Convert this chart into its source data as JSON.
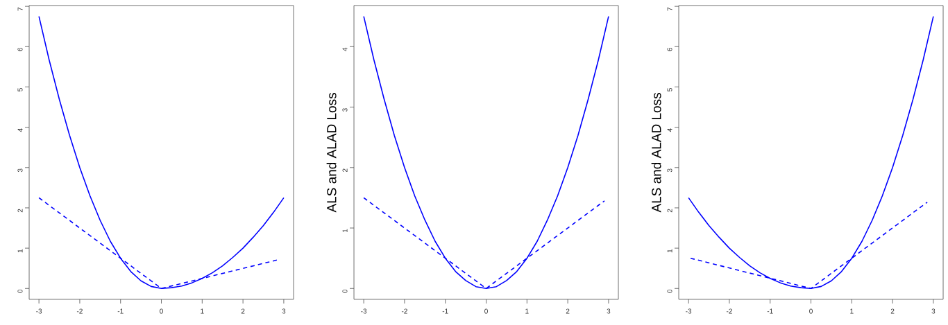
{
  "chart_data": [
    {
      "type": "line",
      "xlim": [
        -3.24,
        3.24
      ],
      "ylim": [
        -0.27,
        7.02
      ],
      "xticks": [
        -3,
        -2,
        -1,
        0,
        1,
        2,
        3
      ],
      "yticks": [
        0,
        1,
        2,
        3,
        4,
        5,
        6,
        7
      ],
      "series": [
        {
          "color": "#0000ff",
          "line_style": "solid",
          "x": [
            -3,
            -2.75,
            -2.5,
            -2.25,
            -2,
            -1.75,
            -1.5,
            -1.25,
            -1,
            -0.75,
            -0.5,
            -0.25,
            0,
            0.25,
            0.5,
            0.75,
            1,
            1.25,
            1.5,
            1.75,
            2,
            2.25,
            2.5,
            2.75,
            3
          ],
          "values": [
            6.75,
            5.67,
            4.69,
            3.8,
            3.0,
            2.3,
            1.69,
            1.17,
            0.75,
            0.42,
            0.19,
            0.05,
            0,
            0.02,
            0.06,
            0.14,
            0.25,
            0.39,
            0.56,
            0.77,
            1.0,
            1.27,
            1.56,
            1.89,
            2.25
          ]
        },
        {
          "color": "#0000ff",
          "line_style": "dashed",
          "x": [
            -3,
            0,
            2.85
          ],
          "values": [
            2.25,
            0,
            0.71
          ]
        }
      ]
    },
    {
      "type": "line",
      "xlim": [
        -3.24,
        3.24
      ],
      "ylim": [
        -0.18,
        4.68
      ],
      "xticks": [
        -3,
        -2,
        -1,
        0,
        1,
        2,
        3
      ],
      "yticks": [
        0,
        1,
        2,
        3,
        4
      ],
      "ylabel": "ALS and ALAD Loss",
      "series": [
        {
          "color": "#0000ff",
          "line_style": "solid",
          "x": [
            -3,
            -2.75,
            -2.5,
            -2.25,
            -2,
            -1.75,
            -1.5,
            -1.25,
            -1,
            -0.75,
            -0.5,
            -0.25,
            0,
            0.25,
            0.5,
            0.75,
            1,
            1.25,
            1.5,
            1.75,
            2,
            2.25,
            2.5,
            2.75,
            3
          ],
          "values": [
            4.5,
            3.78,
            3.13,
            2.53,
            2.0,
            1.53,
            1.13,
            0.78,
            0.5,
            0.28,
            0.13,
            0.03,
            0,
            0.03,
            0.13,
            0.28,
            0.5,
            0.78,
            1.13,
            1.53,
            2.0,
            2.53,
            3.13,
            3.78,
            4.5
          ]
        },
        {
          "color": "#0000ff",
          "line_style": "dashed",
          "x": [
            -3,
            0,
            2.9
          ],
          "values": [
            1.5,
            0,
            1.45
          ]
        }
      ]
    },
    {
      "type": "line",
      "xlim": [
        -3.24,
        3.24
      ],
      "ylim": [
        -0.27,
        7.02
      ],
      "xticks": [
        -3,
        -2,
        -1,
        0,
        1,
        2,
        3
      ],
      "yticks": [
        0,
        1,
        2,
        3,
        4,
        5,
        6,
        7
      ],
      "ylabel": "ALS and ALAD Loss",
      "series": [
        {
          "color": "#0000ff",
          "line_style": "solid",
          "x": [
            -3,
            -2.75,
            -2.5,
            -2.25,
            -2,
            -1.75,
            -1.5,
            -1.25,
            -1,
            -0.75,
            -0.5,
            -0.25,
            0,
            0.25,
            0.5,
            0.75,
            1,
            1.25,
            1.5,
            1.75,
            2,
            2.25,
            2.5,
            2.75,
            3
          ],
          "values": [
            2.25,
            1.89,
            1.56,
            1.27,
            1.0,
            0.77,
            0.56,
            0.39,
            0.25,
            0.14,
            0.06,
            0.02,
            0,
            0.05,
            0.19,
            0.42,
            0.75,
            1.17,
            1.69,
            2.3,
            3.0,
            3.8,
            4.69,
            5.67,
            6.75
          ]
        },
        {
          "color": "#0000ff",
          "line_style": "dashed",
          "x": [
            -2.95,
            0,
            2.85
          ],
          "values": [
            0.75,
            0,
            2.14
          ]
        }
      ]
    }
  ]
}
